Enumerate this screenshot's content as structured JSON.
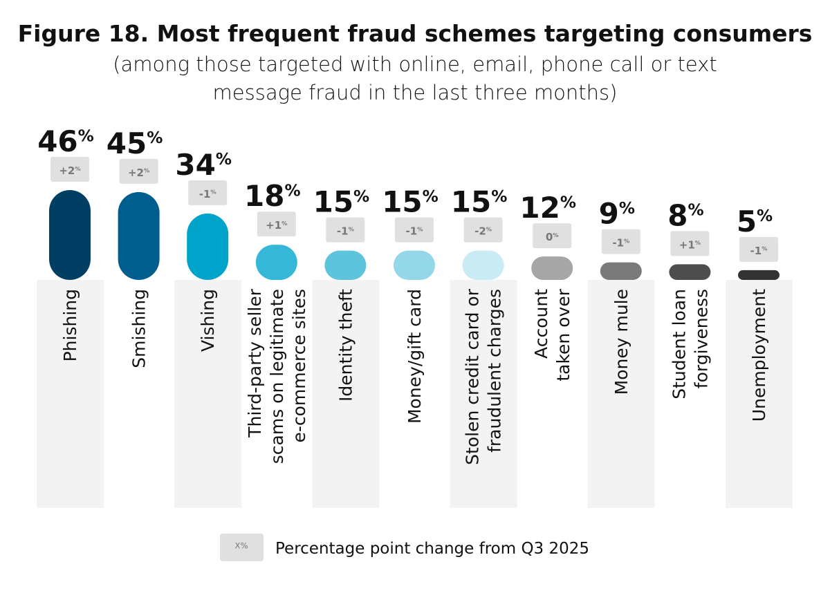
{
  "chart_data": {
    "type": "pill",
    "title": "Figure 18. Most frequent fraud schemes targeting consumers",
    "subtitle": [
      "(among those targeted with online, email, phone call or text",
      "message fraud in the last three months)"
    ],
    "categories": [
      [
        "Phishing"
      ],
      [
        "Smishing"
      ],
      [
        "Vishing"
      ],
      [
        "Third-party seller",
        "scams on legitimate",
        "e-commerce sites"
      ],
      [
        "Identity theft"
      ],
      [
        "Money/gift card"
      ],
      [
        "Stolen credit card or",
        "fraudulent charges"
      ],
      [
        "Account",
        "taken over"
      ],
      [
        "Money mule"
      ],
      [
        "Student loan",
        "forgiveness"
      ],
      [
        "Unemployment"
      ]
    ],
    "values": [
      46,
      45,
      34,
      18,
      15,
      15,
      15,
      12,
      9,
      8,
      5
    ],
    "value_labels": [
      "46%",
      "45%",
      "34%",
      "18%",
      "15%",
      "15%",
      "15%",
      "12%",
      "9%",
      "8%",
      "5%"
    ],
    "changes": [
      2,
      2,
      -1,
      1,
      -1,
      -1,
      -2,
      0,
      -1,
      1,
      -1
    ],
    "change_labels": [
      "+2%",
      "+2%",
      "-1%",
      "+1%",
      "-1%",
      "-1%",
      "-2%",
      "0%",
      "-1%",
      "+1%",
      "-1%"
    ],
    "colors": [
      "#003f63",
      "#005e8e",
      "#00a3c9",
      "#35b8d8",
      "#5ec4dd",
      "#93d7e9",
      "#c9ebf3",
      "#a6a6a6",
      "#7a7a7a",
      "#4d4d4d",
      "#333333"
    ],
    "legend": {
      "key": "X%",
      "label": "Percentage point change from Q3 2025"
    }
  }
}
